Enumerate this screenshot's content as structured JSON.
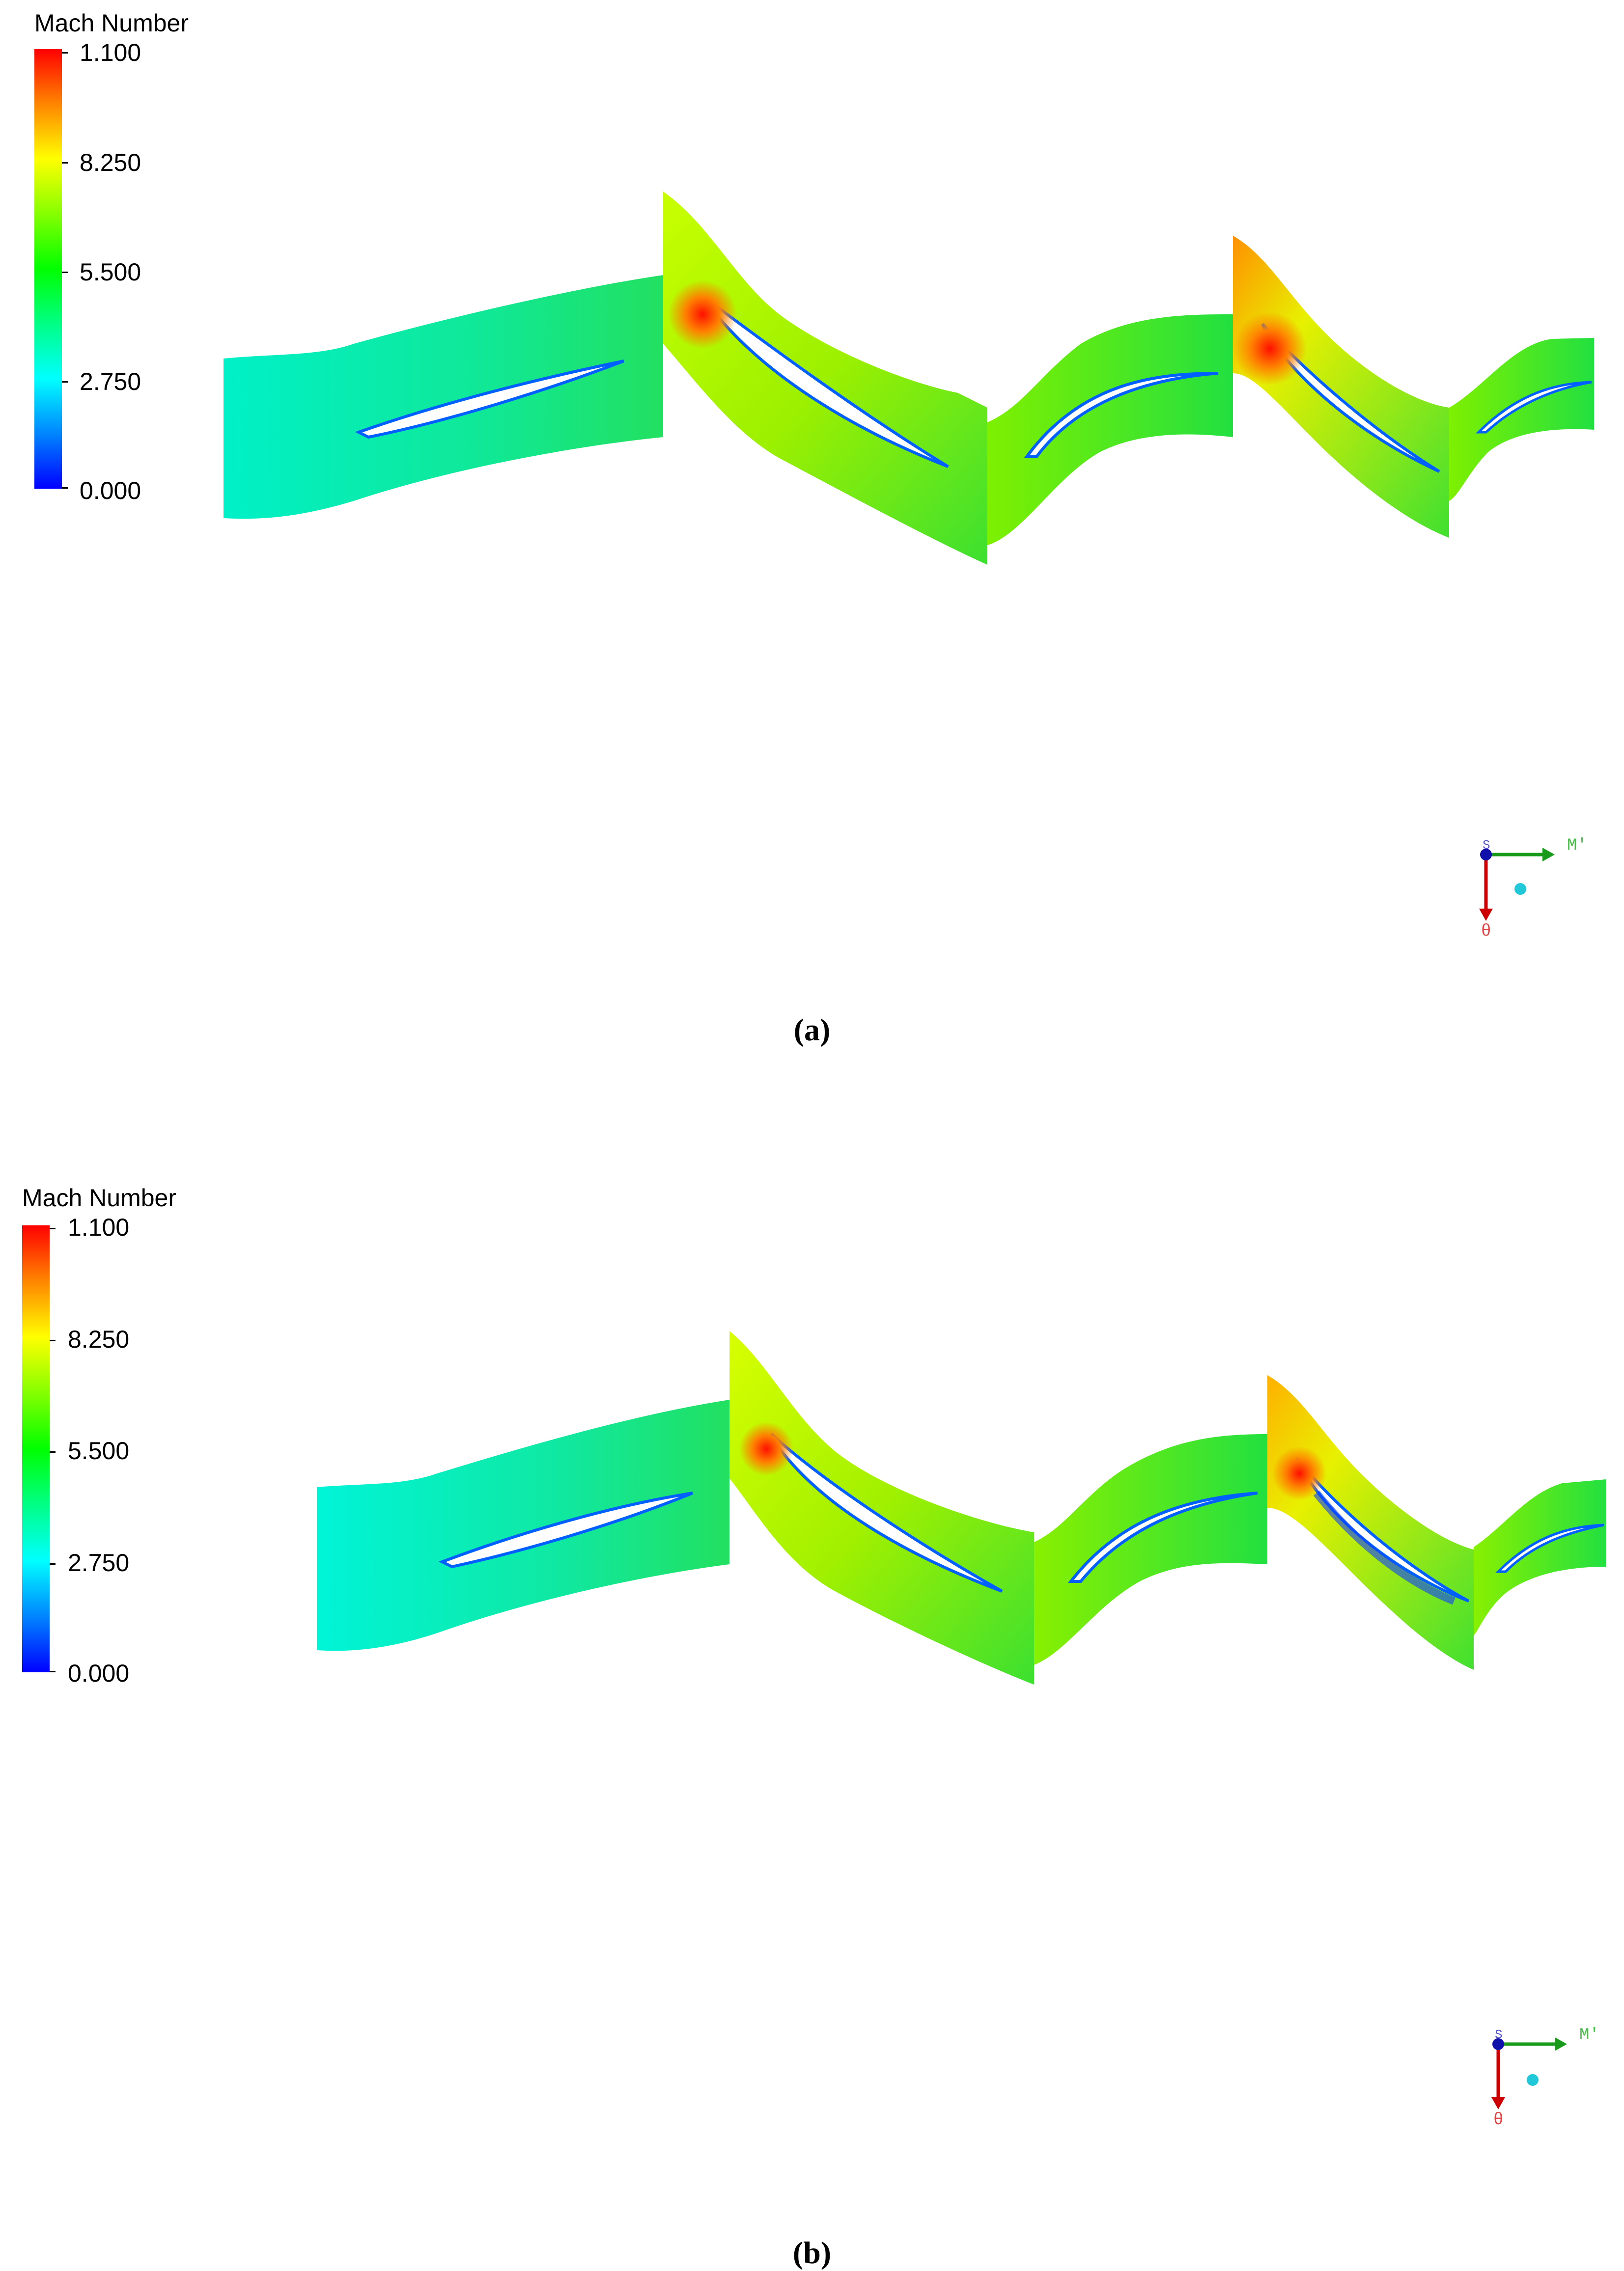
{
  "panels": [
    {
      "caption": "(a)",
      "legend": {
        "title": "Mach Number",
        "ticks": [
          "1.100",
          "8.250",
          "5.500",
          "2.750",
          "0.000"
        ]
      },
      "axes": {
        "x": "M'",
        "y": "θ",
        "origin": "S"
      }
    },
    {
      "caption": "(b)",
      "legend": {
        "title": "Mach Number",
        "ticks": [
          "1.100",
          "8.250",
          "5.500",
          "2.750",
          "0.000"
        ]
      },
      "axes": {
        "x": "M'",
        "y": "θ",
        "origin": "S"
      }
    }
  ],
  "colors": {
    "blue": "#0000ff",
    "cyan": "#00ffe0",
    "green": "#1ee81e",
    "yellow": "#d8ff00",
    "orange": "#ff9a00",
    "red": "#ff0000"
  }
}
